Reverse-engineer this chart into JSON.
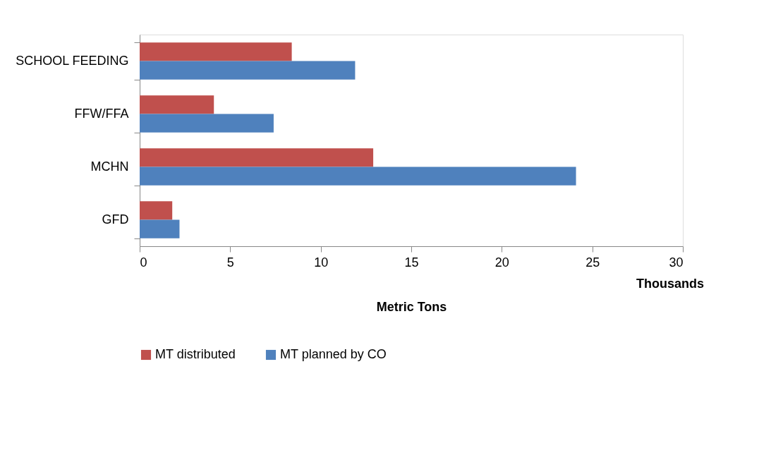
{
  "chart_data": {
    "type": "bar",
    "orientation": "horizontal",
    "xlabel": "Metric Tons",
    "annotations": [
      "Thousands"
    ],
    "categories": [
      "SCHOOL FEEDING",
      "FFW/FFA",
      "MCHN",
      "GFD"
    ],
    "series": [
      {
        "name": "MT distributed",
        "color": "#c0504d",
        "values": [
          8.4,
          4.1,
          12.9,
          1.8
        ]
      },
      {
        "name": "MT planned by CO",
        "color": "#4f81bd",
        "values": [
          11.9,
          7.4,
          24.1,
          2.2
        ]
      }
    ],
    "xlim": [
      0,
      30
    ],
    "xticks": [
      0,
      5,
      10,
      15,
      20,
      25,
      30
    ],
    "grid": false,
    "legend": "bottom"
  }
}
